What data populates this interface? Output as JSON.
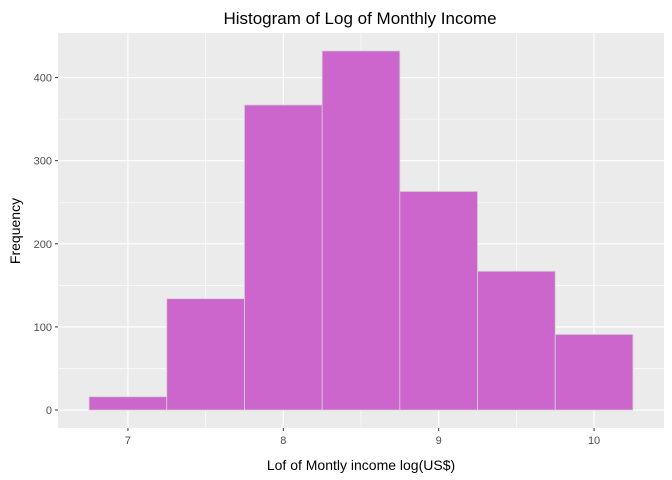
{
  "chart_data": {
    "type": "bar",
    "title": "Histogram of Log of Monthly Income",
    "xlabel": "Lof of Montly income log(US$)",
    "ylabel": "Frequency",
    "bin_edges": [
      6.75,
      7.25,
      7.75,
      8.25,
      8.75,
      9.25,
      9.75,
      10.25
    ],
    "values": [
      16,
      134,
      367,
      432,
      263,
      167,
      91
    ],
    "x_ticks": [
      7,
      8,
      9,
      10
    ],
    "y_ticks": [
      0,
      100,
      200,
      300,
      400
    ],
    "xlim": [
      6.55,
      10.45
    ],
    "ylim": [
      -21.6,
      453.6
    ],
    "grid": true,
    "bar_color": "#CC66CC",
    "bar_outline": "#D3D3D3",
    "panel_color": "#EBEBEB",
    "grid_color": "#FFFFFF"
  }
}
